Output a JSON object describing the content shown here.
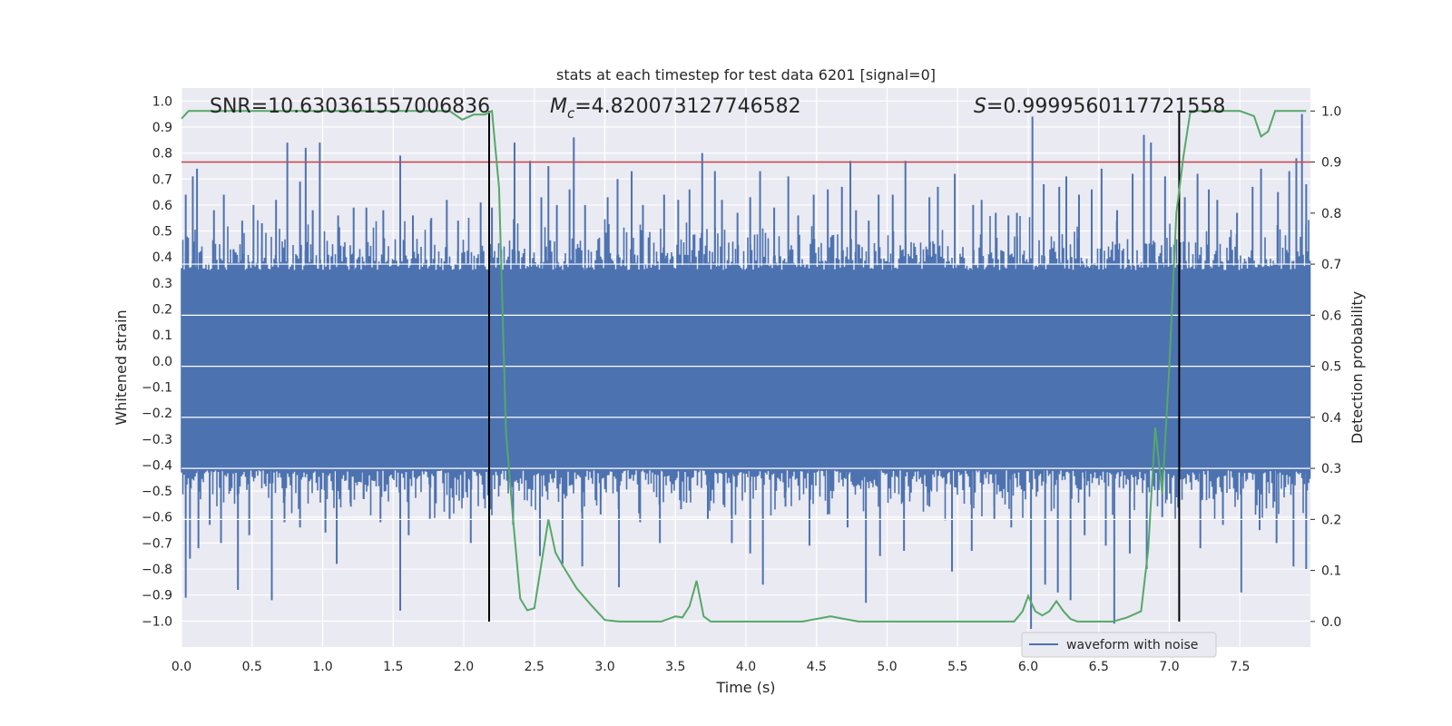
{
  "chart_data": {
    "type": "line",
    "title": "stats at each timestep for test data 6201 [signal=0]",
    "xlabel": "Time (s)",
    "ylabel": "Whitened strain",
    "y2label": "Detection probability",
    "xlim": [
      0.0,
      8.0
    ],
    "ylim": [
      -1.1,
      1.05
    ],
    "y2lim": [
      -0.05,
      1.045
    ],
    "grid": true,
    "legend_placement": "lower-right",
    "x_ticks": [
      "0.0",
      "0.5",
      "1.0",
      "1.5",
      "2.0",
      "2.5",
      "3.0",
      "3.5",
      "4.0",
      "4.5",
      "5.0",
      "5.5",
      "6.0",
      "6.5",
      "7.0",
      "7.5"
    ],
    "y_ticks": [
      "1.0",
      "0.9",
      "0.8",
      "0.7",
      "0.6",
      "0.5",
      "0.4",
      "0.3",
      "0.2",
      "0.1",
      "0.0",
      "-0.1",
      "-0.2",
      "-0.3",
      "-0.4",
      "-0.5",
      "-0.6",
      "-0.7",
      "-0.8",
      "-0.9",
      "-1.0"
    ],
    "y2_ticks": [
      "1.0",
      "0.9",
      "0.8",
      "0.7",
      "0.6",
      "0.5",
      "0.4",
      "0.3",
      "0.2",
      "0.1",
      "0.0"
    ],
    "annotations": {
      "snr_text": "SNR=10.630361557006836",
      "mc_symbol": "M",
      "mc_sub": "c",
      "mc_value": "=4.820073127746582",
      "s_symbol": "S",
      "s_value": "=0.9999560117721558"
    },
    "threshold": {
      "value": 0.9,
      "axis": "y2",
      "color": "#c44e52"
    },
    "vlines": [
      {
        "x": 2.18,
        "color": "#000000"
      },
      {
        "x": 7.07,
        "color": "#000000"
      }
    ],
    "series": [
      {
        "name": "waveform with noise",
        "axis": "y",
        "color": "#4c72b0",
        "envelope": {
          "x_range": [
            0.0,
            8.0
          ],
          "core_upper": 0.35,
          "core_lower": -0.42,
          "spikes_up": [
            [
              0.03,
              0.64
            ],
            [
              0.08,
              0.71
            ],
            [
              0.11,
              0.74
            ],
            [
              0.23,
              0.58
            ],
            [
              0.3,
              0.64
            ],
            [
              0.37,
              0.43
            ],
            [
              0.43,
              0.54
            ],
            [
              0.51,
              0.6
            ],
            [
              0.57,
              0.53
            ],
            [
              0.67,
              0.62
            ],
            [
              0.75,
              0.84
            ],
            [
              0.84,
              0.69
            ],
            [
              0.88,
              0.82
            ],
            [
              0.93,
              0.58
            ],
            [
              0.98,
              0.84
            ],
            [
              1.11,
              0.56
            ],
            [
              1.22,
              0.59
            ],
            [
              1.31,
              0.59
            ],
            [
              1.43,
              0.58
            ],
            [
              1.55,
              0.79
            ],
            [
              1.64,
              0.56
            ],
            [
              1.77,
              0.55
            ],
            [
              1.88,
              0.62
            ],
            [
              1.96,
              0.54
            ],
            [
              2.12,
              0.61
            ],
            [
              2.2,
              0.59
            ],
            [
              2.36,
              0.84
            ],
            [
              2.47,
              0.77
            ],
            [
              2.55,
              0.63
            ],
            [
              2.6,
              0.75
            ],
            [
              2.66,
              0.6
            ],
            [
              2.75,
              0.66
            ],
            [
              2.78,
              0.86
            ],
            [
              2.86,
              0.6
            ],
            [
              3.02,
              0.63
            ],
            [
              3.09,
              0.7
            ],
            [
              3.19,
              0.73
            ],
            [
              3.27,
              0.6
            ],
            [
              3.42,
              0.64
            ],
            [
              3.52,
              0.62
            ],
            [
              3.6,
              0.66
            ],
            [
              3.69,
              0.8
            ],
            [
              3.78,
              0.73
            ],
            [
              3.83,
              0.62
            ],
            [
              3.94,
              0.57
            ],
            [
              4.03,
              0.63
            ],
            [
              4.1,
              0.73
            ],
            [
              4.2,
              0.59
            ],
            [
              4.3,
              0.71
            ],
            [
              4.37,
              0.56
            ],
            [
              4.48,
              0.64
            ],
            [
              4.58,
              0.66
            ],
            [
              4.68,
              0.67
            ],
            [
              4.74,
              0.77
            ],
            [
              4.78,
              0.58
            ],
            [
              4.87,
              0.54
            ],
            [
              4.94,
              0.64
            ],
            [
              5.04,
              0.64
            ],
            [
              5.13,
              0.77
            ],
            [
              5.3,
              0.63
            ],
            [
              5.36,
              0.67
            ],
            [
              5.48,
              0.72
            ],
            [
              5.61,
              0.6
            ],
            [
              5.67,
              0.62
            ],
            [
              5.77,
              0.57
            ],
            [
              5.86,
              0.56
            ],
            [
              5.92,
              0.57
            ],
            [
              6.03,
              0.94
            ],
            [
              6.11,
              0.68
            ],
            [
              6.22,
              0.67
            ],
            [
              6.27,
              0.71
            ],
            [
              6.36,
              0.64
            ],
            [
              6.45,
              0.66
            ],
            [
              6.52,
              0.74
            ],
            [
              6.63,
              0.58
            ],
            [
              6.74,
              0.72
            ],
            [
              6.82,
              0.87
            ],
            [
              6.87,
              0.84
            ],
            [
              6.97,
              0.71
            ],
            [
              7.11,
              0.63
            ],
            [
              7.2,
              0.72
            ],
            [
              7.28,
              0.66
            ],
            [
              7.34,
              0.62
            ],
            [
              7.48,
              0.57
            ],
            [
              7.59,
              0.67
            ],
            [
              7.65,
              0.74
            ],
            [
              7.77,
              0.65
            ],
            [
              7.85,
              0.73
            ],
            [
              7.9,
              0.78
            ],
            [
              7.94,
              0.95
            ],
            [
              7.97,
              0.68
            ]
          ],
          "spikes_down": [
            [
              0.03,
              -0.91
            ],
            [
              0.06,
              -0.76
            ],
            [
              0.12,
              -0.72
            ],
            [
              0.2,
              -0.63
            ],
            [
              0.28,
              -0.7
            ],
            [
              0.4,
              -0.88
            ],
            [
              0.48,
              -0.67
            ],
            [
              0.64,
              -0.92
            ],
            [
              0.73,
              -0.62
            ],
            [
              0.84,
              -0.64
            ],
            [
              1.02,
              -0.66
            ],
            [
              1.1,
              -0.78
            ],
            [
              1.2,
              -0.56
            ],
            [
              1.29,
              -0.53
            ],
            [
              1.41,
              -0.62
            ],
            [
              1.55,
              -0.96
            ],
            [
              1.61,
              -0.67
            ],
            [
              1.76,
              -0.61
            ],
            [
              1.9,
              -0.61
            ],
            [
              2.05,
              -0.7
            ],
            [
              2.19,
              -0.57
            ],
            [
              2.35,
              -0.63
            ],
            [
              2.54,
              -0.75
            ],
            [
              2.7,
              -0.78
            ],
            [
              2.84,
              -0.79
            ],
            [
              2.97,
              -0.59
            ],
            [
              3.1,
              -0.87
            ],
            [
              3.25,
              -0.62
            ],
            [
              3.39,
              -0.7
            ],
            [
              3.54,
              -0.57
            ],
            [
              3.73,
              -0.61
            ],
            [
              3.9,
              -0.7
            ],
            [
              4.03,
              -0.74
            ],
            [
              4.12,
              -0.86
            ],
            [
              4.28,
              -0.56
            ],
            [
              4.45,
              -0.71
            ],
            [
              4.58,
              -0.59
            ],
            [
              4.72,
              -0.64
            ],
            [
              4.85,
              -0.93
            ],
            [
              4.95,
              -0.75
            ],
            [
              5.12,
              -0.73
            ],
            [
              5.3,
              -0.56
            ],
            [
              5.46,
              -0.81
            ],
            [
              5.6,
              -0.73
            ],
            [
              5.76,
              -0.61
            ],
            [
              5.88,
              -0.64
            ],
            [
              6.02,
              -1.03
            ],
            [
              6.12,
              -0.86
            ],
            [
              6.21,
              -0.89
            ],
            [
              6.3,
              -0.92
            ],
            [
              6.4,
              -0.67
            ],
            [
              6.55,
              -0.71
            ],
            [
              6.61,
              -1.01
            ],
            [
              6.72,
              -0.74
            ],
            [
              6.84,
              -0.8
            ],
            [
              6.95,
              -0.6
            ],
            [
              7.06,
              -0.52
            ],
            [
              7.22,
              -0.72
            ],
            [
              7.38,
              -0.63
            ],
            [
              7.51,
              -0.89
            ],
            [
              7.64,
              -0.65
            ],
            [
              7.76,
              -0.7
            ],
            [
              7.88,
              -0.79
            ],
            [
              7.97,
              -0.8
            ]
          ]
        }
      },
      {
        "name": "",
        "axis": "y2",
        "color": "#55a868",
        "x": [
          0.0,
          0.05,
          0.1,
          0.5,
          1.0,
          1.5,
          1.9,
          1.99,
          2.07,
          2.15,
          2.2,
          2.25,
          2.3,
          2.35,
          2.4,
          2.45,
          2.5,
          2.6,
          2.65,
          2.7,
          2.8,
          2.9,
          3.0,
          3.1,
          3.2,
          3.4,
          3.5,
          3.55,
          3.6,
          3.65,
          3.7,
          3.75,
          3.8,
          4.0,
          4.4,
          4.6,
          4.7,
          4.8,
          5.0,
          5.5,
          5.9,
          5.96,
          6.0,
          6.05,
          6.1,
          6.15,
          6.2,
          6.25,
          6.3,
          6.35,
          6.4,
          6.5,
          6.6,
          6.7,
          6.8,
          6.85,
          6.9,
          6.95,
          7.0,
          7.05,
          7.1,
          7.15,
          7.3,
          7.5,
          7.6,
          7.65,
          7.7,
          7.75,
          7.8,
          7.85,
          7.9,
          7.97
        ],
        "values": [
          0.985,
          1.0,
          1.0,
          1.0,
          1.0,
          1.0,
          1.0,
          0.983,
          0.993,
          0.993,
          1.0,
          0.85,
          0.37,
          0.2,
          0.045,
          0.022,
          0.026,
          0.2,
          0.135,
          0.11,
          0.065,
          0.033,
          0.003,
          0.0,
          0.0,
          0.0,
          0.01,
          0.008,
          0.03,
          0.08,
          0.01,
          0.0,
          0.0,
          0.0,
          0.0,
          0.01,
          0.005,
          0.0,
          0.0,
          0.0,
          0.0,
          0.02,
          0.05,
          0.02,
          0.012,
          0.02,
          0.04,
          0.02,
          0.005,
          0.0,
          0.0,
          0.0,
          0.0,
          0.008,
          0.02,
          0.14,
          0.38,
          0.25,
          0.5,
          0.8,
          0.91,
          1.0,
          1.0,
          1.0,
          0.99,
          0.95,
          0.96,
          1.0,
          1.0,
          1.0,
          1.0,
          1.0
        ]
      }
    ]
  }
}
